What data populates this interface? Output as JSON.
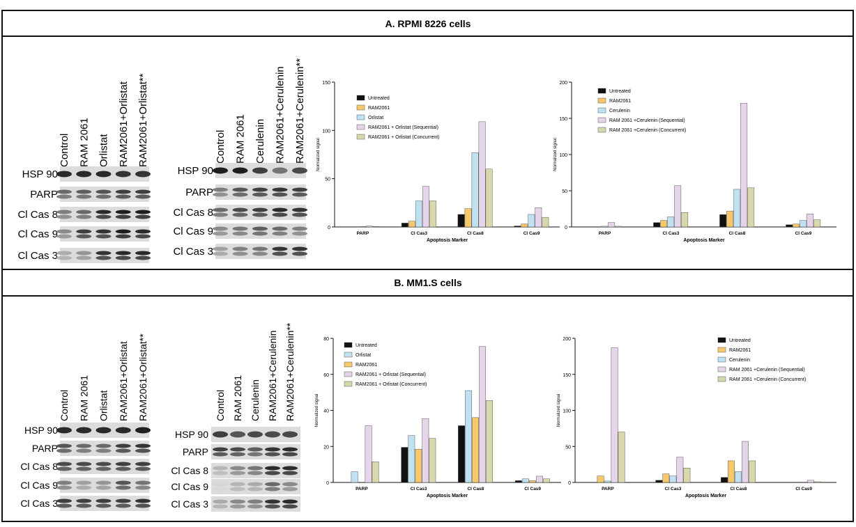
{
  "panels": [
    {
      "title": "A. RPMI 8226 cells",
      "blots": [
        {
          "lanes": [
            "Control",
            "RAM 2061",
            "Orlistat",
            "RAM2061+Orlistat",
            "RAM2061+Orlistat**"
          ],
          "markers": [
            "HSP 90",
            "PARP",
            "Cl Cas 8",
            "Cl Cas 9",
            "Cl Cas 3"
          ]
        },
        {
          "lanes": [
            "Control",
            "RAM 2061",
            "Cerulenin",
            "RAM2061+Cerulenin",
            "RAM2061+Cerulenin**"
          ],
          "markers": [
            "HSP 90",
            "PARP",
            "Cl Cas 8",
            "Cl Cas 9",
            "Cl Cas 3"
          ]
        }
      ]
    },
    {
      "title": "B. MM1.S cells",
      "blots": [
        {
          "lanes": [
            "Control",
            "RAM 2061",
            "Orlistat",
            "RAM2061+Orlistat",
            "RAM2061+Orlistat**"
          ],
          "markers": [
            "HSP 90",
            "PARP",
            "Cl Cas 8",
            "Cl Cas 9",
            "Cl Cas 3"
          ]
        },
        {
          "lanes": [
            "Control",
            "RAM 2061",
            "Cerulenin",
            "RAM2061+Cerulenin",
            "RAM2061+Cerulenin**"
          ],
          "markers": [
            "HSP 90",
            "PARP",
            "Cl Cas 8",
            "Cl Cas 9",
            "Cl Cas 3"
          ]
        }
      ]
    }
  ],
  "colors": {
    "black": "#111111",
    "orange": "#f6c86e",
    "blue": "#bfe1f2",
    "pink": "#e6d4ea",
    "khaki": "#d8d8ac"
  },
  "chart_data": [
    {
      "type": "bar",
      "title": "",
      "xlabel": "Apoptosis Marker",
      "ylabel": "Normalized signal",
      "ylim": [
        0,
        150
      ],
      "yticks": [
        0,
        50,
        100,
        150
      ],
      "legend_position": "top-left",
      "categories": [
        "PARP",
        "Cl Cas3",
        "Cl Cas8",
        "Cl Cas9"
      ],
      "series": [
        {
          "name": "Untreated",
          "color": "#111111",
          "values": [
            0,
            4,
            13,
            1
          ]
        },
        {
          "name": "RAM2061",
          "color": "#f6c86e",
          "values": [
            0,
            6,
            19,
            3
          ]
        },
        {
          "name": "Orlistat",
          "color": "#bfe1f2",
          "values": [
            0.5,
            27,
            77,
            13
          ]
        },
        {
          "name": "RAM2061 + Orlistat (Sequential)",
          "color": "#e6d4ea",
          "values": [
            1,
            42,
            109,
            20
          ]
        },
        {
          "name": "RAM2061 + Orlistat (Concurrent)",
          "color": "#d8d8ac",
          "values": [
            0.5,
            27,
            60,
            10
          ]
        }
      ]
    },
    {
      "type": "bar",
      "title": "",
      "xlabel": "Apoptosis Marker",
      "ylabel": "Normalized signal",
      "ylim": [
        0,
        200
      ],
      "yticks": [
        0,
        50,
        100,
        150,
        200
      ],
      "legend_position": "top-left",
      "categories": [
        "PARP",
        "Cl Cas3",
        "Cl Cas8",
        "Cl Cas9"
      ],
      "series": [
        {
          "name": "Untreated",
          "color": "#111111",
          "values": [
            0,
            6,
            17,
            3
          ]
        },
        {
          "name": "RAM2061",
          "color": "#f6c86e",
          "values": [
            0,
            9,
            22,
            4
          ]
        },
        {
          "name": "Cerulenin",
          "color": "#bfe1f2",
          "values": [
            1,
            14,
            52,
            9
          ]
        },
        {
          "name": "RAM 2061 +Cerulenin (Sequential)",
          "color": "#e6d4ea",
          "values": [
            6,
            57,
            171,
            18
          ]
        },
        {
          "name": "RAM 2061 +Cerulenin (Concurrent)",
          "color": "#d8d8ac",
          "values": [
            1,
            20,
            54,
            10
          ]
        }
      ]
    },
    {
      "type": "bar",
      "title": "",
      "xlabel": "Apoptosis Marker",
      "ylabel": "Normalized signal",
      "ylim": [
        0,
        80
      ],
      "yticks": [
        0,
        20,
        40,
        60,
        80
      ],
      "legend_position": "top-left",
      "categories": [
        "PARP",
        "Cl Cas3",
        "Cl Cas8",
        "Cl Cas9"
      ],
      "series": [
        {
          "name": "Untreated",
          "color": "#111111",
          "values": [
            0,
            19.5,
            31.5,
            1
          ]
        },
        {
          "name": "Orlistat",
          "color": "#bfe1f2",
          "values": [
            6,
            26,
            51,
            2
          ]
        },
        {
          "name": "RAM2061",
          "color": "#f6c86e",
          "values": [
            0,
            18.5,
            36,
            1
          ]
        },
        {
          "name": "RAM2061 + Orlistat (Sequential)",
          "color": "#e6d4ea",
          "values": [
            31.5,
            35.5,
            75.5,
            3.5
          ]
        },
        {
          "name": "RAM2061 + Orlistat (Concurrent)",
          "color": "#d8d8ac",
          "values": [
            11.5,
            24.5,
            45.5,
            2
          ]
        }
      ]
    },
    {
      "type": "bar",
      "title": "",
      "xlabel": "Apoptosis Marker",
      "ylabel": "Normalized signal",
      "ylim": [
        0,
        200
      ],
      "yticks": [
        0,
        50,
        100,
        150,
        200
      ],
      "legend_position": "top-right",
      "categories": [
        "PARP",
        "Cl Cas3",
        "Cl Cas8",
        "Cl Cas9"
      ],
      "series": [
        {
          "name": "Untreated",
          "color": "#111111",
          "values": [
            0,
            3,
            7,
            0
          ]
        },
        {
          "name": "RAM2061",
          "color": "#f6c86e",
          "values": [
            9,
            12,
            30,
            0
          ]
        },
        {
          "name": "Cerulenin",
          "color": "#bfe1f2",
          "values": [
            2,
            9,
            15,
            0.5
          ]
        },
        {
          "name": "RAM 2061 +Cerulenin (Sequential)",
          "color": "#e6d4ea",
          "values": [
            187,
            35,
            57,
            3
          ]
        },
        {
          "name": "RAM 2061 +Cerulenin (Concurrent)",
          "color": "#d8d8ac",
          "values": [
            70,
            20,
            30,
            1
          ]
        }
      ]
    }
  ]
}
